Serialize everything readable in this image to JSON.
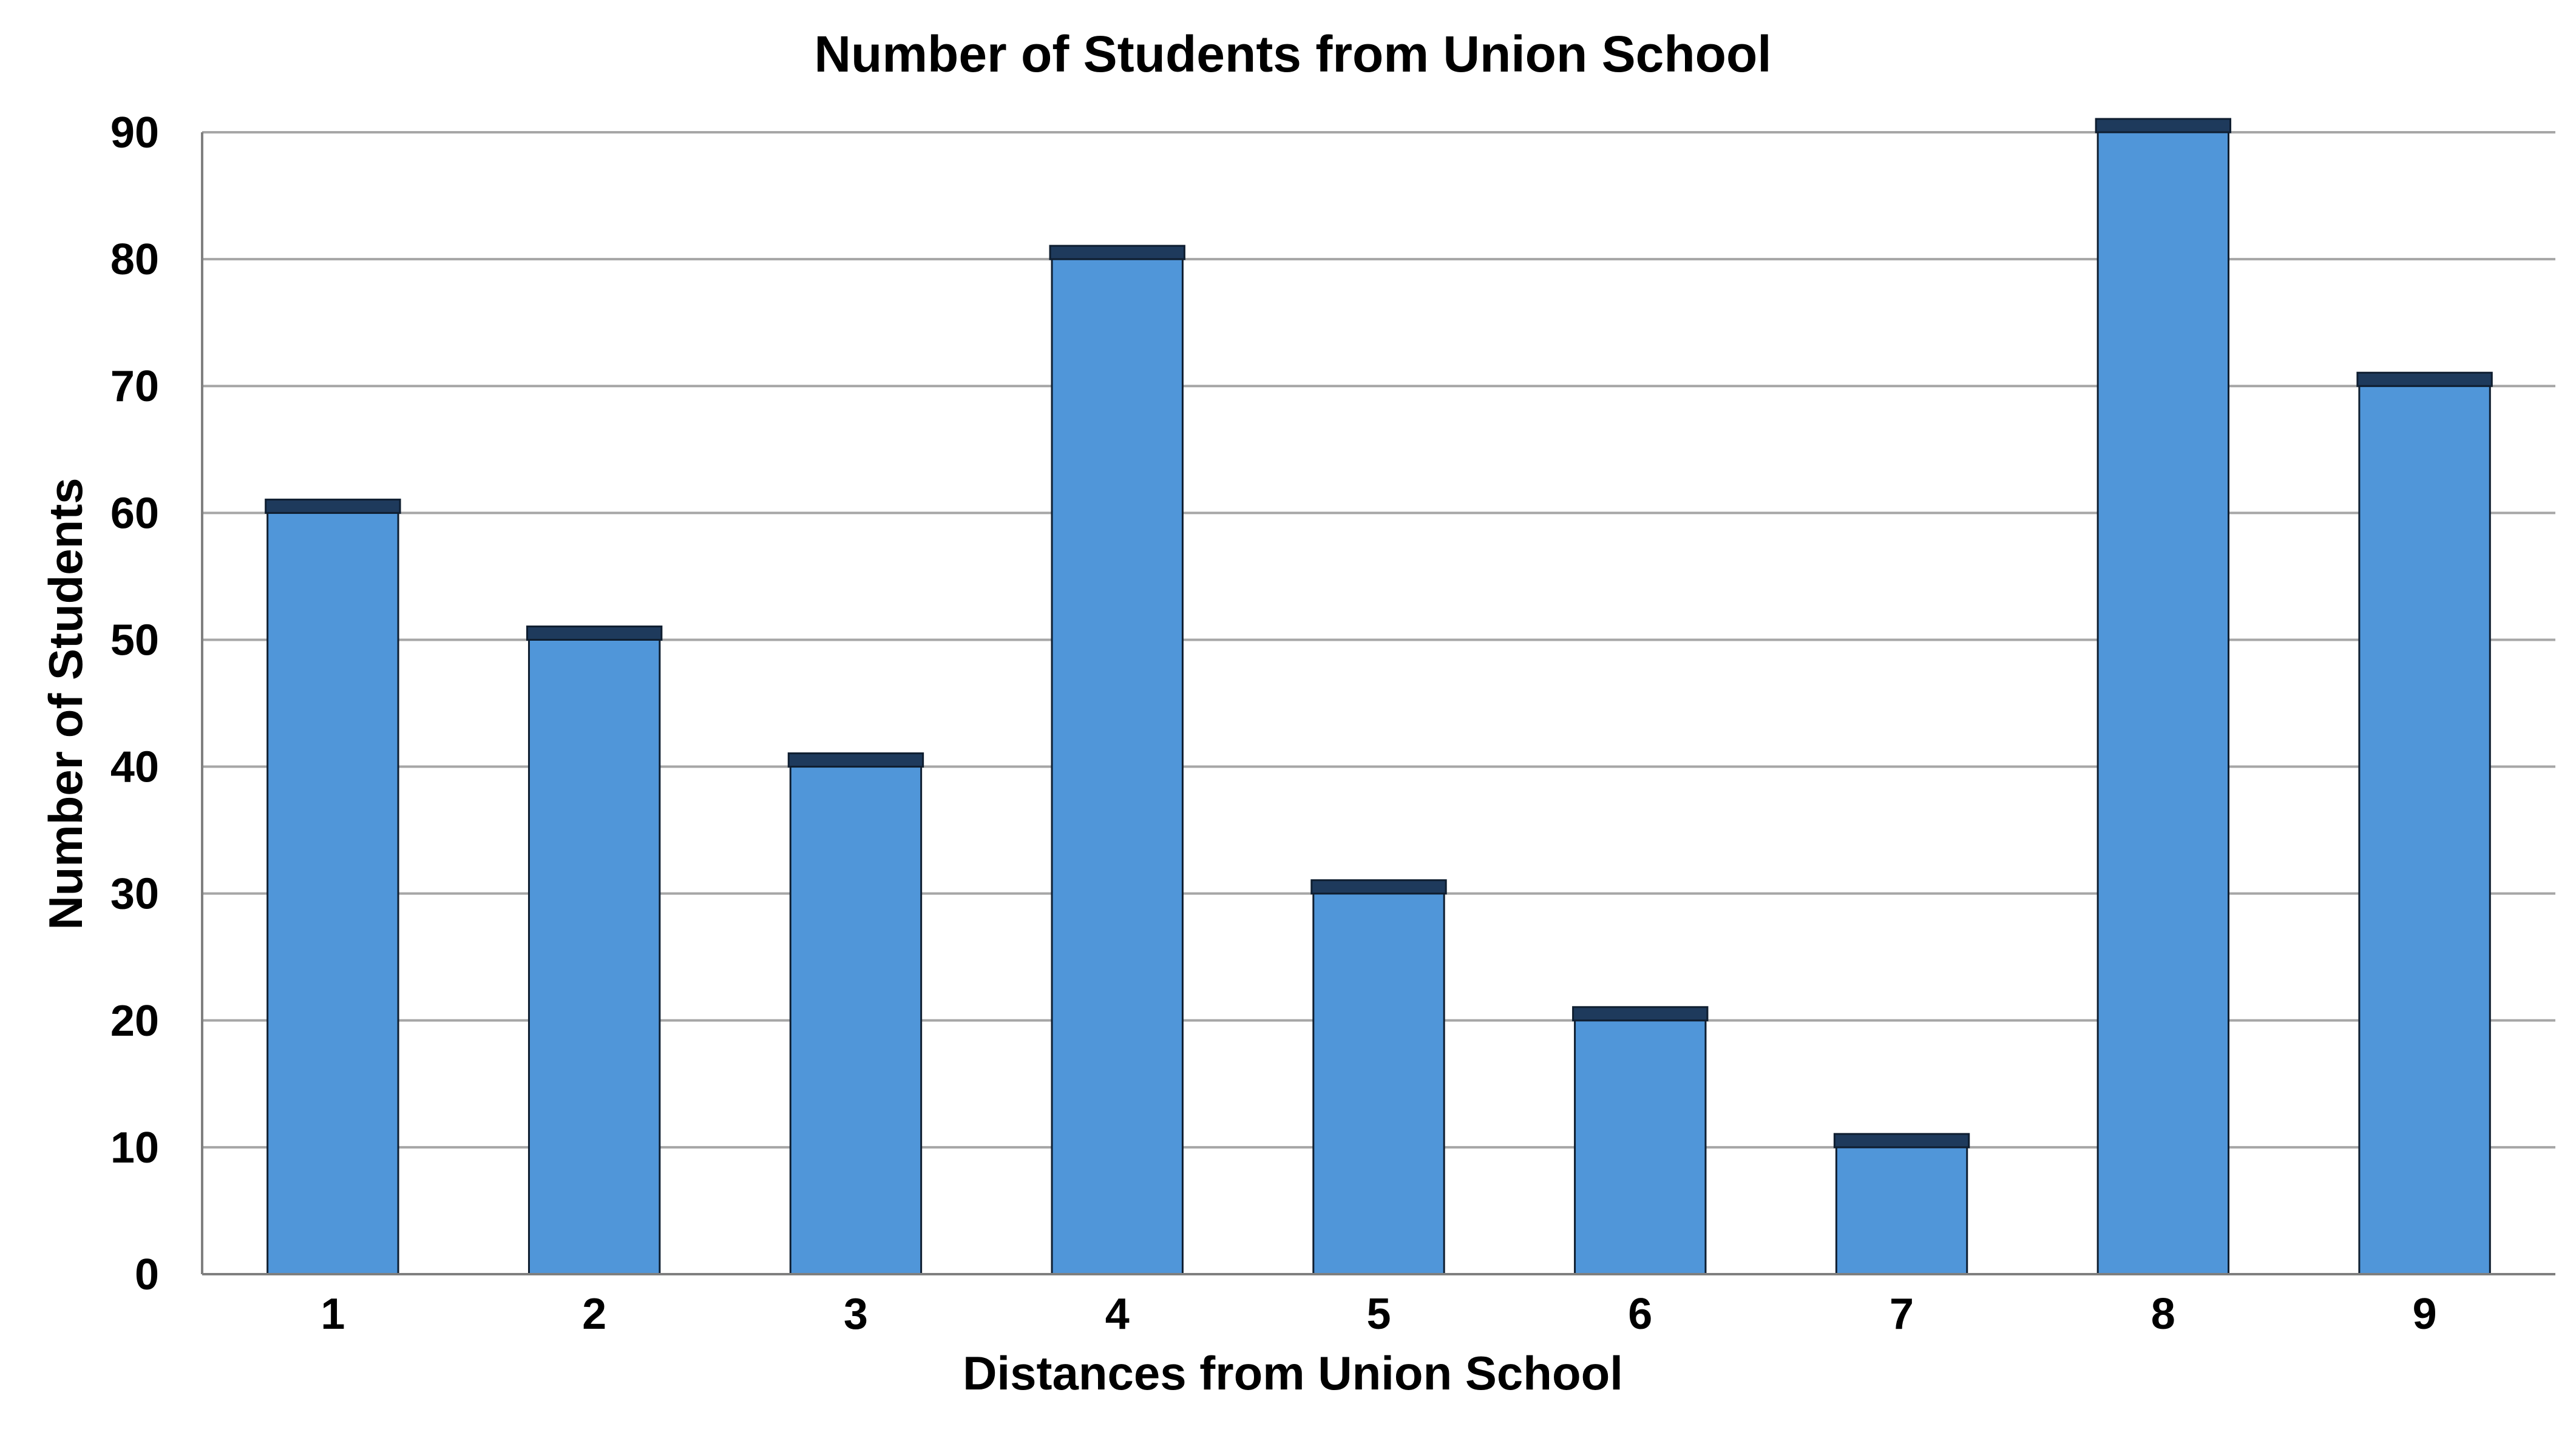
{
  "chart_data": {
    "type": "bar",
    "title": "Number of Students from Union School",
    "xlabel": "Distances from Union School",
    "ylabel": "Number of Students",
    "categories": [
      "1",
      "2",
      "3",
      "4",
      "5",
      "6",
      "7",
      "8",
      "9"
    ],
    "values": [
      60,
      50,
      40,
      80,
      30,
      20,
      10,
      90,
      70
    ],
    "ylim": [
      0,
      90
    ],
    "yticks": [
      0,
      10,
      20,
      30,
      40,
      50,
      60,
      70,
      80,
      90
    ],
    "grid": true,
    "legend": "none",
    "colors": {
      "bar_fill": "#5096D9",
      "bar_cap": "#1E3A5C",
      "bar_edge": "#0F1E30",
      "grid": "#A6A6A6",
      "axis": "#7F7F7F"
    }
  }
}
